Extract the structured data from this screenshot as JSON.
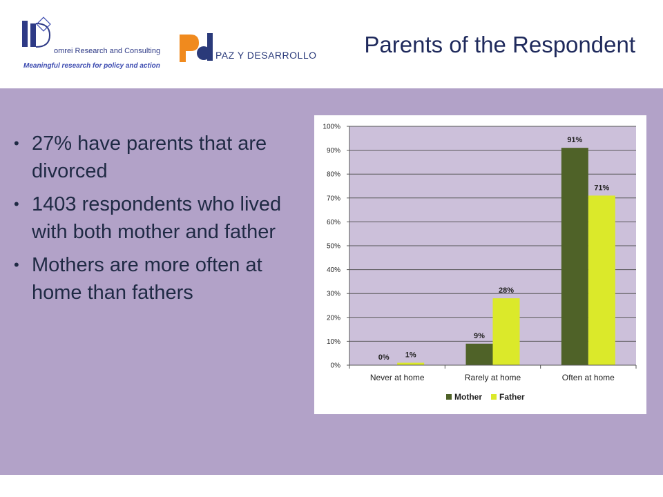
{
  "header": {
    "logo1": {
      "name": "omrei Research and Consulting",
      "tagline": "Meaningful research for policy and action"
    },
    "logo2": {
      "text": "PAZ Y DESARROLLO"
    },
    "title": "Parents of the Respondent"
  },
  "bullets": [
    "27% have parents that are divorced",
    "1403 respondents who lived with both mother and father",
    "Mothers are more often at home than fathers"
  ],
  "colors": {
    "mother": "#4f6228",
    "father": "#dbe92a",
    "plot_bg": "#ccc0da",
    "slide_bg": "#b2a2c8",
    "title": "#1f2a5c"
  },
  "chart_data": {
    "type": "bar",
    "categories": [
      "Never at home",
      "Rarely at home",
      "Often at home"
    ],
    "series": [
      {
        "name": "Mother",
        "values": [
          0,
          9,
          91
        ],
        "labels": [
          "0%",
          "9%",
          "91%"
        ]
      },
      {
        "name": "Father",
        "values": [
          1,
          28,
          71
        ],
        "labels": [
          "1%",
          "28%",
          "71%"
        ]
      }
    ],
    "ylim": [
      0,
      100
    ],
    "yticks": [
      "0%",
      "10%",
      "20%",
      "30%",
      "40%",
      "50%",
      "60%",
      "70%",
      "80%",
      "90%",
      "100%"
    ],
    "title": "",
    "xlabel": "",
    "ylabel": "",
    "grid": true,
    "legend": "bottom"
  }
}
